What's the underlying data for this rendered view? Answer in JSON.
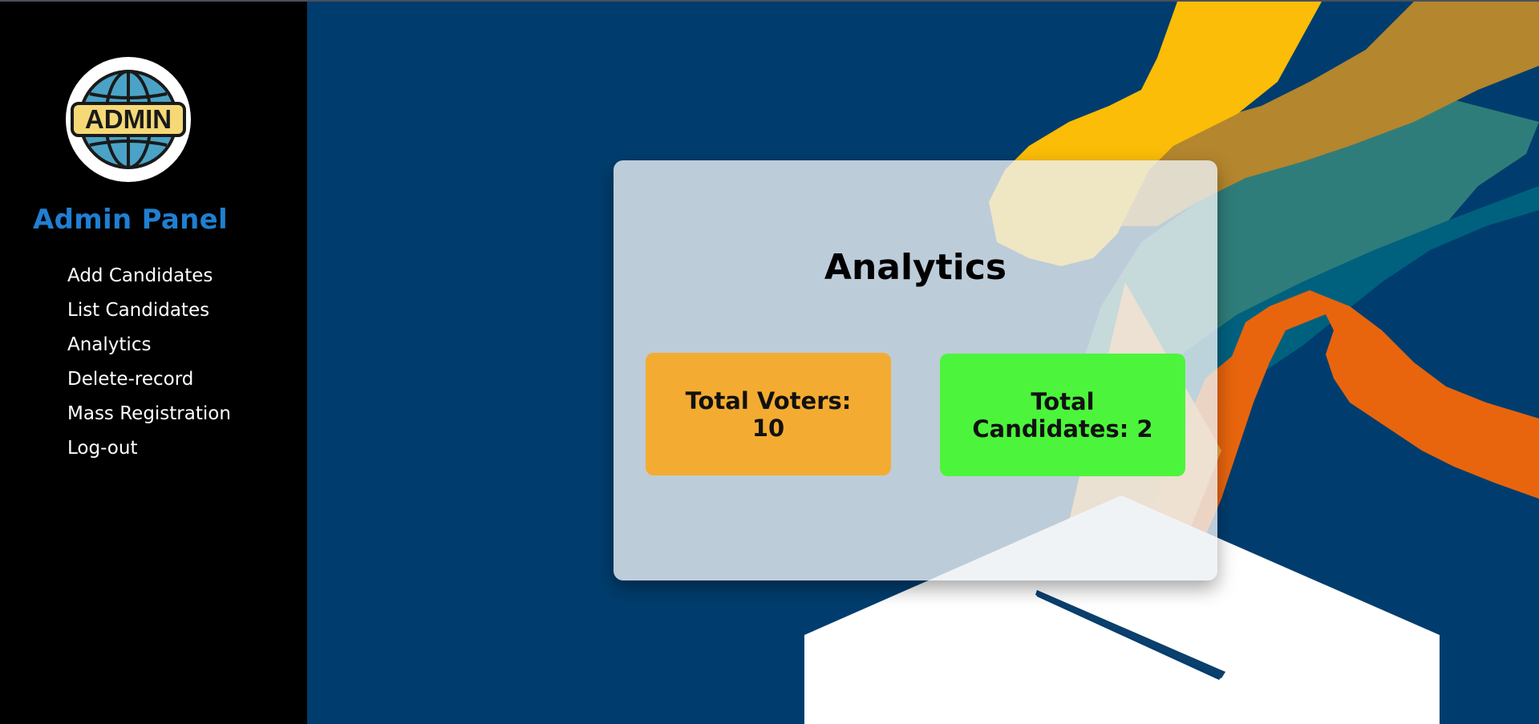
{
  "sidebar": {
    "logo_text": "ADMIN",
    "title": "Admin Panel",
    "nav": [
      {
        "label": "Add Candidates"
      },
      {
        "label": "List Candidates"
      },
      {
        "label": "Analytics"
      },
      {
        "label": "Delete-record"
      },
      {
        "label": "Mass Registration"
      },
      {
        "label": "Log-out"
      }
    ]
  },
  "main": {
    "card_title": "Analytics",
    "total_voters_label": "Total Voters:",
    "total_voters_value": "10",
    "total_candidates_label": "Total Candidates:",
    "total_candidates_value": "2"
  },
  "colors": {
    "sidebar_bg": "#000000",
    "brand_text": "#1f7fd1",
    "main_bg": "#003d6e",
    "voters_card": "#f3ac31",
    "candidates_card": "#4cf53b"
  },
  "icons": [
    "admin-globe-logo-icon"
  ]
}
